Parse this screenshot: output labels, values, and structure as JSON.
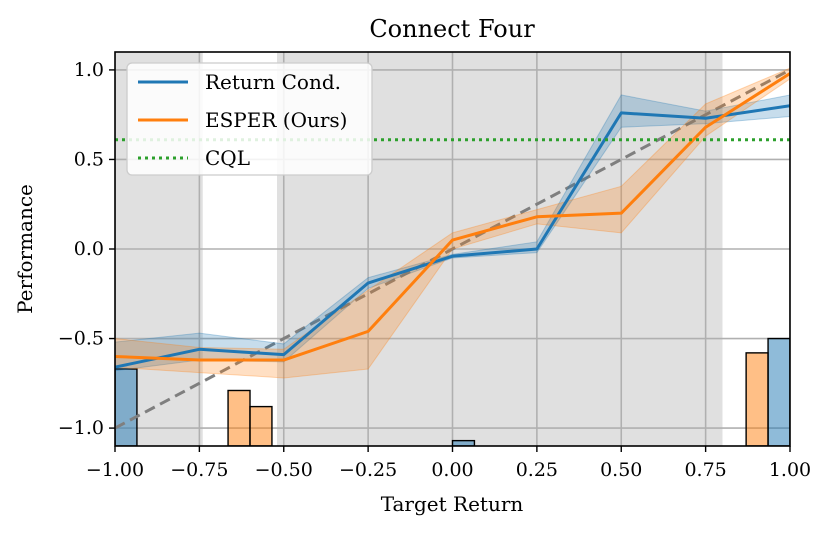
{
  "chart_data": {
    "type": "line",
    "title": "Connect Four",
    "xlabel": "Target Return",
    "ylabel": "Performance",
    "xlim": [
      -1.0,
      1.0
    ],
    "ylim": [
      -1.1,
      1.1
    ],
    "x_ticks": [
      "−1.00",
      "−0.75",
      "−0.50",
      "−0.25",
      "0.00",
      "0.25",
      "0.50",
      "0.75",
      "1.00"
    ],
    "x_tick_values": [
      -1.0,
      -0.75,
      -0.5,
      -0.25,
      0.0,
      0.25,
      0.5,
      0.75,
      1.0
    ],
    "y_ticks": [
      "−1.0",
      "−0.5",
      "0.0",
      "0.5",
      "1.0"
    ],
    "y_tick_values": [
      -1.0,
      -0.5,
      0.0,
      0.5,
      1.0
    ],
    "grid": true,
    "legend_position": "top-left",
    "series": [
      {
        "name": "Return Cond.",
        "color": "#1f77b4",
        "x": [
          -1.0,
          -0.75,
          -0.5,
          -0.25,
          0.0,
          0.25,
          0.5,
          0.75,
          1.0
        ],
        "y": [
          -0.66,
          -0.56,
          -0.59,
          -0.19,
          -0.04,
          0.0,
          0.76,
          0.73,
          0.8
        ],
        "lower": [
          -0.68,
          -0.62,
          -0.63,
          -0.22,
          -0.05,
          -0.02,
          0.68,
          0.7,
          0.74
        ],
        "upper": [
          -0.52,
          -0.47,
          -0.53,
          -0.16,
          -0.03,
          0.04,
          0.86,
          0.77,
          0.86
        ]
      },
      {
        "name": "ESPER (Ours)",
        "color": "#ff7f0e",
        "x": [
          -1.0,
          -0.75,
          -0.5,
          -0.25,
          0.0,
          0.25,
          0.5,
          0.75,
          1.0
        ],
        "y": [
          -0.6,
          -0.62,
          -0.62,
          -0.46,
          0.05,
          0.18,
          0.2,
          0.68,
          0.98
        ],
        "lower": [
          -0.66,
          -0.69,
          -0.72,
          -0.67,
          0.0,
          0.14,
          0.09,
          0.63,
          0.95
        ],
        "upper": [
          -0.5,
          -0.55,
          -0.56,
          -0.23,
          0.09,
          0.22,
          0.35,
          0.81,
          1.01
        ]
      },
      {
        "name": "CQL",
        "color": "#2ca02c",
        "style": "dotted",
        "y_constant": 0.61
      }
    ],
    "reference_line": {
      "slope": 1,
      "intercept": 0,
      "color": "#7f7f7f",
      "style": "dashed"
    },
    "shaded_regions": [
      {
        "x0": -1.0,
        "x1": -0.74,
        "color": "#e0e0e0"
      },
      {
        "x0": -0.52,
        "x1": 0.8,
        "color": "#e0e0e0"
      }
    ],
    "histogram": {
      "baseline": -1.1,
      "bars": [
        {
          "x0": -1.0,
          "x1": -0.935,
          "value": -0.67,
          "color": "#1f77b4"
        },
        {
          "x0": -0.665,
          "x1": -0.6,
          "value": -0.79,
          "color": "#ff7f0e"
        },
        {
          "x0": -0.6,
          "x1": -0.535,
          "value": -0.88,
          "color": "#ff7f0e"
        },
        {
          "x0": 0.0,
          "x1": 0.065,
          "value": -1.07,
          "color": "#1f77b4"
        },
        {
          "x0": 0.87,
          "x1": 0.935,
          "value": -0.58,
          "color": "#ff7f0e"
        },
        {
          "x0": 0.935,
          "x1": 1.0,
          "value": -0.5,
          "color": "#1f77b4"
        }
      ]
    }
  }
}
